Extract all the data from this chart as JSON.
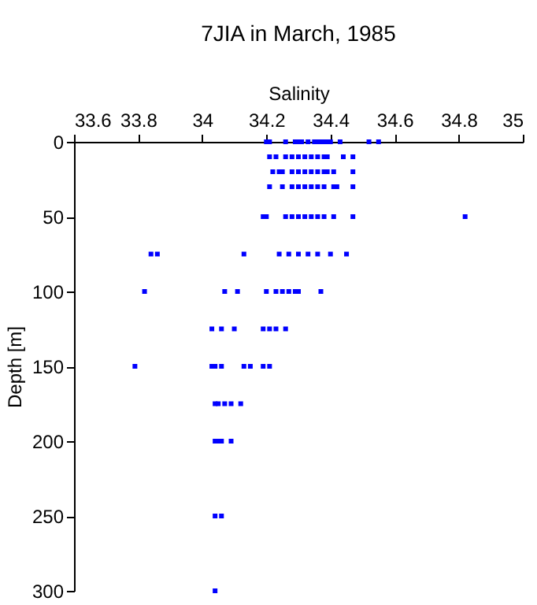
{
  "chart_data": {
    "type": "scatter",
    "title": "7JIA in March, 1985",
    "xlabel": "Salinity",
    "ylabel": "Depth [m]",
    "xlim": [
      33.6,
      35
    ],
    "xticks": [
      33.6,
      33.8,
      34,
      34.2,
      34.4,
      34.6,
      34.8,
      35
    ],
    "ylim": [
      300,
      0
    ],
    "yticks": [
      0,
      50,
      100,
      150,
      200,
      250,
      300
    ],
    "grid": false,
    "marker": "square",
    "series": [
      {
        "color": "#0000ff",
        "x": [
          34.2,
          34.21,
          34.26,
          34.29,
          34.3,
          34.31,
          34.33,
          34.35,
          34.36,
          34.37,
          34.38,
          34.39,
          34.4,
          34.43,
          34.52,
          34.55,
          34.21,
          34.23,
          34.26,
          34.28,
          34.3,
          34.32,
          34.34,
          34.36,
          34.38,
          34.39,
          34.44,
          34.47,
          34.22,
          34.24,
          34.25,
          34.28,
          34.3,
          34.32,
          34.34,
          34.36,
          34.38,
          34.39,
          34.41,
          34.47,
          34.21,
          34.25,
          34.28,
          34.3,
          34.32,
          34.34,
          34.36,
          34.38,
          34.41,
          34.42,
          34.47,
          34.19,
          34.2,
          34.26,
          34.28,
          34.3,
          34.32,
          34.34,
          34.36,
          34.38,
          34.41,
          34.47,
          34.82,
          33.84,
          33.86,
          34.13,
          34.24,
          34.27,
          34.3,
          34.33,
          34.36,
          34.4,
          34.45,
          33.82,
          34.07,
          34.11,
          34.2,
          34.23,
          34.25,
          34.27,
          34.29,
          34.3,
          34.37,
          34.03,
          34.06,
          34.1,
          34.19,
          34.21,
          34.23,
          34.26,
          33.79,
          34.03,
          34.04,
          34.06,
          34.13,
          34.15,
          34.19,
          34.21,
          34.04,
          34.05,
          34.07,
          34.09,
          34.12,
          34.04,
          34.05,
          34.06,
          34.09,
          34.04,
          34.06,
          34.04
        ],
        "values": [
          0,
          0,
          0,
          0,
          0,
          0,
          0,
          0,
          0,
          0,
          0,
          0,
          0,
          0,
          0,
          0,
          10,
          10,
          10,
          10,
          10,
          10,
          10,
          10,
          10,
          10,
          10,
          10,
          20,
          20,
          20,
          20,
          20,
          20,
          20,
          20,
          20,
          20,
          20,
          20,
          30,
          30,
          30,
          30,
          30,
          30,
          30,
          30,
          30,
          30,
          30,
          50,
          50,
          50,
          50,
          50,
          50,
          50,
          50,
          50,
          50,
          50,
          50,
          75,
          75,
          75,
          75,
          75,
          75,
          75,
          75,
          75,
          75,
          100,
          100,
          100,
          100,
          100,
          100,
          100,
          100,
          100,
          100,
          125,
          125,
          125,
          125,
          125,
          125,
          125,
          150,
          150,
          150,
          150,
          150,
          150,
          150,
          150,
          175,
          175,
          175,
          175,
          175,
          200,
          200,
          200,
          200,
          250,
          250,
          300
        ]
      }
    ]
  }
}
